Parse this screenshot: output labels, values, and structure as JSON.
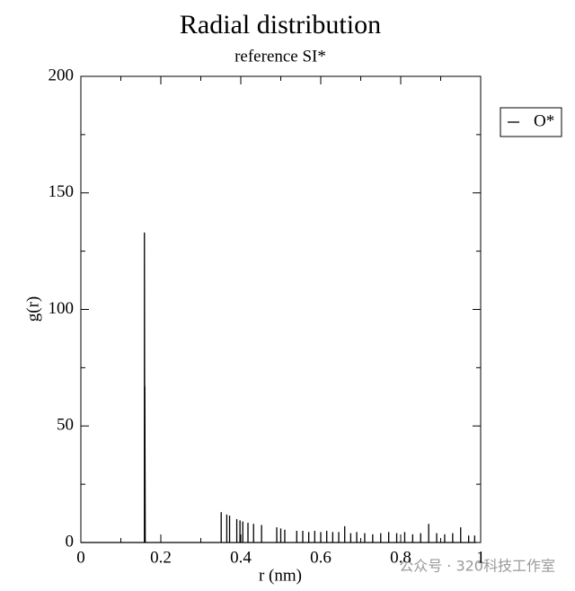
{
  "chart_data": {
    "type": "line",
    "title": "Radial distribution",
    "subtitle": "reference SI*",
    "x_label": "r (nm)",
    "y_label": "g(r)",
    "watermark": "公众号 · 320科技工作室",
    "xlim": [
      0,
      1
    ],
    "ylim": [
      0,
      200
    ],
    "xticks": [
      0,
      0.2,
      0.4,
      0.6,
      0.8,
      1
    ],
    "yticks": [
      0,
      50,
      100,
      150,
      200
    ],
    "legend": "upper right",
    "series": [
      {
        "name": "O*",
        "color": "#000000",
        "x": [
          0,
          0.159,
          0.159,
          0.16,
          0.16,
          0.161,
          0.351,
          0.351,
          0.351,
          0.365,
          0.365,
          0.365,
          0.372,
          0.372,
          0.372,
          0.39,
          0.39,
          0.39,
          0.398,
          0.398,
          0.398,
          0.405,
          0.405,
          0.405,
          0.418,
          0.418,
          0.418,
          0.432,
          0.432,
          0.432,
          0.452,
          0.452,
          0.452,
          0.49,
          0.49,
          0.49,
          0.5,
          0.5,
          0.5,
          0.51,
          0.51,
          0.51,
          0.54,
          0.54,
          0.54,
          0.555,
          0.555,
          0.555,
          0.57,
          0.57,
          0.57,
          0.585,
          0.585,
          0.585,
          0.6,
          0.6,
          0.6,
          0.615,
          0.615,
          0.615,
          0.63,
          0.63,
          0.63,
          0.645,
          0.645,
          0.645,
          0.66,
          0.66,
          0.66,
          0.675,
          0.675,
          0.675,
          0.69,
          0.69,
          0.69,
          0.71,
          0.71,
          0.71,
          0.73,
          0.73,
          0.73,
          0.75,
          0.75,
          0.75,
          0.77,
          0.77,
          0.77,
          0.79,
          0.79,
          0.79,
          0.81,
          0.81,
          0.81,
          0.83,
          0.83,
          0.83,
          0.85,
          0.85,
          0.85,
          0.87,
          0.87,
          0.87,
          0.89,
          0.89,
          0.89,
          0.91,
          0.91,
          0.91,
          0.93,
          0.93,
          0.93,
          0.95,
          0.95,
          0.95,
          0.97,
          0.97,
          0.97,
          0.985,
          0.985,
          0.985,
          0.99
        ],
        "values": [
          0,
          0,
          133,
          0,
          67,
          0,
          0,
          13,
          0,
          0,
          12,
          0,
          0,
          11.5,
          0,
          0,
          10,
          0,
          0,
          9.5,
          0,
          0,
          9,
          0,
          0,
          8.5,
          0,
          0,
          8,
          0,
          0,
          7.5,
          0,
          0,
          6.5,
          0,
          0,
          6,
          0,
          0,
          5.5,
          0,
          0,
          5,
          0,
          0,
          5,
          0,
          0,
          4.5,
          0,
          0,
          5,
          0,
          0,
          4.5,
          0,
          0,
          5,
          0,
          0,
          4.5,
          0,
          0,
          4.5,
          0,
          0,
          7,
          0,
          0,
          4,
          0,
          0,
          4.5,
          0,
          0,
          4,
          0,
          0,
          3.5,
          0,
          0,
          4,
          0,
          0,
          4.5,
          0,
          0,
          4,
          0,
          0,
          4.5,
          0,
          0,
          3.5,
          0,
          0,
          4,
          0,
          0,
          8,
          0,
          0,
          4,
          0,
          0,
          3.5,
          0,
          0,
          4,
          0,
          0,
          6.5,
          0,
          0,
          3,
          0,
          0,
          3,
          0,
          0
        ]
      }
    ]
  }
}
